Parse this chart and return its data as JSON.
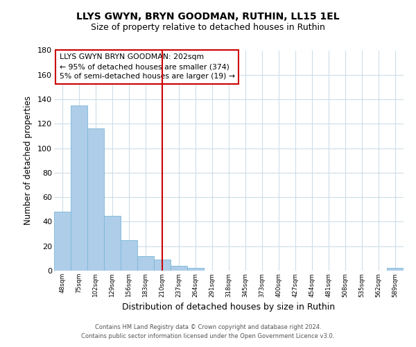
{
  "title": "LLYS GWYN, BRYN GOODMAN, RUTHIN, LL15 1EL",
  "subtitle": "Size of property relative to detached houses in Ruthin",
  "xlabel": "Distribution of detached houses by size in Ruthin",
  "ylabel": "Number of detached properties",
  "bin_labels": [
    "48sqm",
    "75sqm",
    "102sqm",
    "129sqm",
    "156sqm",
    "183sqm",
    "210sqm",
    "237sqm",
    "264sqm",
    "291sqm",
    "318sqm",
    "345sqm",
    "373sqm",
    "400sqm",
    "427sqm",
    "454sqm",
    "481sqm",
    "508sqm",
    "535sqm",
    "562sqm",
    "589sqm"
  ],
  "bar_values": [
    48,
    135,
    116,
    45,
    25,
    12,
    9,
    4,
    2,
    0,
    0,
    0,
    0,
    0,
    0,
    0,
    0,
    0,
    0,
    0,
    2
  ],
  "bar_color": "#aecde8",
  "bar_edge_color": "#7ab8d9",
  "vline_index": 6,
  "vline_color": "#cc0000",
  "ylim": [
    0,
    180
  ],
  "yticks": [
    0,
    20,
    40,
    60,
    80,
    100,
    120,
    140,
    160,
    180
  ],
  "annotation_title": "LLYS GWYN BRYN GOODMAN: 202sqm",
  "annotation_line1": "← 95% of detached houses are smaller (374)",
  "annotation_line2": "5% of semi-detached houses are larger (19) →",
  "footer_line1": "Contains HM Land Registry data © Crown copyright and database right 2024.",
  "footer_line2": "Contains public sector information licensed under the Open Government Licence v3.0.",
  "background_color": "#ffffff",
  "grid_color": "#ccdde8",
  "title_fontsize": 10,
  "subtitle_fontsize": 9
}
